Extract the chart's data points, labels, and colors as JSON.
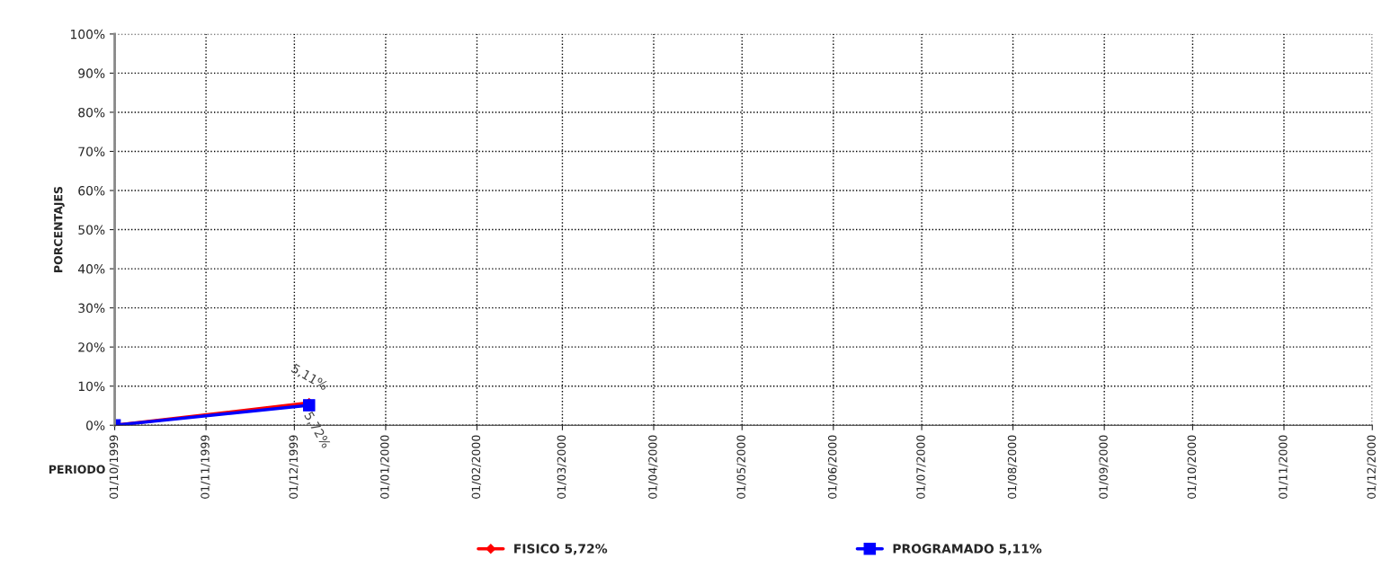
{
  "chart_data": {
    "type": "line",
    "xlabel": "PERIODO",
    "ylabel": "PORCENTAJES",
    "x": [
      "1999-10-01",
      "1999-12-06"
    ],
    "series": [
      {
        "name": "FISICO 5,72%",
        "color": "#ff0000",
        "values": [
          0,
          5.72
        ],
        "marker": "diamond",
        "value_labels": [
          null,
          "5,72%"
        ]
      },
      {
        "name": "PROGRAMADO 5,11%",
        "color": "#0000ff",
        "values": [
          0,
          5.11
        ],
        "marker": "square",
        "value_labels": [
          null,
          "5,11%"
        ]
      }
    ],
    "xlim": [
      "1999-10-01",
      "2000-12-01"
    ],
    "xticks": [
      {
        "value": "1999-10-01",
        "label": "01/10/1999"
      },
      {
        "value": "1999-11-01",
        "label": "01/11/1999"
      },
      {
        "value": "1999-12-01",
        "label": "01/12/1999"
      },
      {
        "value": "2000-01-01",
        "label": "01/01/2000"
      },
      {
        "value": "2000-02-01",
        "label": "01/02/2000"
      },
      {
        "value": "2000-03-01",
        "label": "01/03/2000"
      },
      {
        "value": "2000-04-01",
        "label": "01/04/2000"
      },
      {
        "value": "2000-05-01",
        "label": "01/05/2000"
      },
      {
        "value": "2000-06-01",
        "label": "01/06/2000"
      },
      {
        "value": "2000-07-01",
        "label": "01/07/2000"
      },
      {
        "value": "2000-08-01",
        "label": "01/08/2000"
      },
      {
        "value": "2000-09-01",
        "label": "01/09/2000"
      },
      {
        "value": "2000-10-01",
        "label": "01/10/2000"
      },
      {
        "value": "2000-11-01",
        "label": "01/11/2000"
      },
      {
        "value": "2000-12-01",
        "label": "01/12/2000"
      }
    ],
    "ylim": [
      0,
      100
    ],
    "yticks": [
      {
        "value": 0,
        "label": "0%"
      },
      {
        "value": 10,
        "label": "10%"
      },
      {
        "value": 20,
        "label": "20%"
      },
      {
        "value": 30,
        "label": "30%"
      },
      {
        "value": 40,
        "label": "40%"
      },
      {
        "value": 50,
        "label": "50%"
      },
      {
        "value": 60,
        "label": "60%"
      },
      {
        "value": 70,
        "label": "70%"
      },
      {
        "value": 80,
        "label": "80%"
      },
      {
        "value": 90,
        "label": "90%"
      },
      {
        "value": 100,
        "label": "100%"
      }
    ],
    "grid": true,
    "legend": "bottom",
    "line_style": "solid"
  }
}
